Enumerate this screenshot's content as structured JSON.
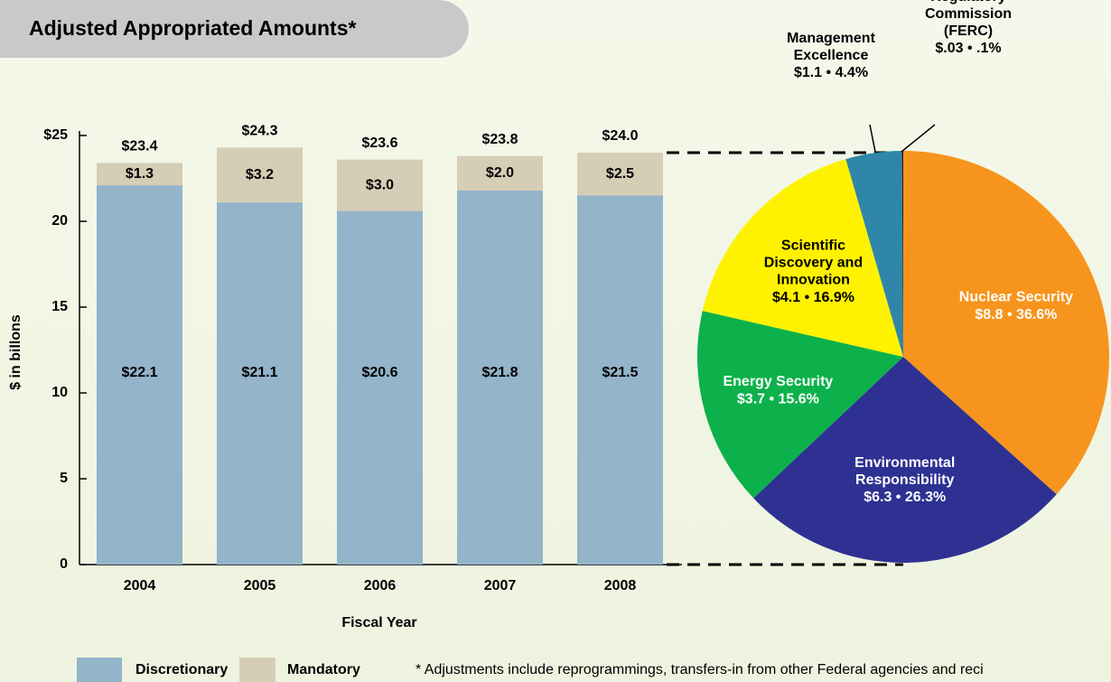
{
  "chart_data": [
    {
      "type": "stacked-bar",
      "title": "Adjusted Appropriated Amounts*",
      "categories": [
        "2004",
        "2005",
        "2006",
        "2007",
        "2008"
      ],
      "series": [
        {
          "name": "Discretionary",
          "color": "#93b4c9",
          "values": [
            22.1,
            21.1,
            20.6,
            21.8,
            21.5
          ],
          "value_labels": [
            "$22.1",
            "$21.1",
            "$20.6",
            "$21.8",
            "$21.5"
          ]
        },
        {
          "name": "Mandatory",
          "color": "#d6cdb6",
          "values": [
            1.3,
            3.2,
            3.0,
            2.0,
            2.5
          ],
          "value_labels": [
            "$1.3",
            "$3.2",
            "$3.0",
            "$2.0",
            "$2.5"
          ]
        }
      ],
      "totals": [
        23.4,
        24.3,
        23.6,
        23.8,
        24.0
      ],
      "total_labels": [
        "$23.4",
        "$24.3",
        "$23.6",
        "$23.8",
        "$24.0"
      ],
      "ylim": [
        0,
        25
      ],
      "yticks": [
        0,
        5,
        10,
        15,
        20,
        {
          "value": 25,
          "label": "$25"
        }
      ],
      "ylabel": "$ in billons",
      "xlabel": "Fiscal Year",
      "footnote": "* Adjustments include reprogrammings, transfers-in from other Federal agencies and reci"
    },
    {
      "type": "pie",
      "categories": [
        "Nuclear Security",
        "Environmental Responsibility",
        "Energy Security",
        "Scientific Discovery and Innovation",
        "Management Excellence",
        "Federal Energy Regulatory Commission (FERC)"
      ],
      "values": [
        36.6,
        26.3,
        15.6,
        16.9,
        4.4,
        0.1
      ],
      "value_labels": [
        "$8.8 • 36.6%",
        "$6.3 • 26.3%",
        "$3.7 • 15.6%",
        "$4.1 • 16.9%",
        "$1.1 • 4.4%",
        "$.03 • .1%"
      ],
      "colors": [
        "#f7941d",
        "#2e3192",
        "#0db14b",
        "#fff200",
        "#2f86a8",
        "#231f20"
      ]
    }
  ]
}
